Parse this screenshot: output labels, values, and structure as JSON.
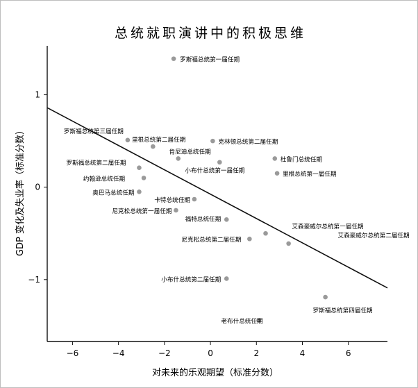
{
  "chart_data": {
    "type": "scatter",
    "title": "总统就职演讲中的积极思维",
    "xlabel": "对未来的乐观期望（标准分数）",
    "ylabel": "GDP 变化及失业率（标准分数）",
    "xlim": [
      -7.1,
      7.7
    ],
    "ylim": [
      -1.67,
      1.53
    ],
    "xticks": [
      -6,
      -4,
      -2,
      0,
      2,
      4,
      6
    ],
    "yticks": [
      -1,
      0,
      1
    ],
    "xtick_labels": [
      "−6",
      "−4",
      "−2",
      "0",
      "2",
      "4",
      "6"
    ],
    "ytick_labels": [
      "−1",
      "0",
      "1"
    ],
    "grid": false,
    "trend_line": {
      "x": [
        -7.1,
        7.7
      ],
      "y": [
        0.86,
        -1.09
      ]
    },
    "point_color": "#9a9a9a",
    "points": [
      {
        "label": "罗斯福总统第一届任期",
        "x": -1.6,
        "y": 1.39
      },
      {
        "label": "罗斯福总统第三届任期",
        "x": -3.6,
        "y": 0.51
      },
      {
        "label": "里根总统第二届任期",
        "x": -2.5,
        "y": 0.44
      },
      {
        "label": "肯尼迪总统任期",
        "x": -1.4,
        "y": 0.31
      },
      {
        "label": "克林顿总统第二届任期",
        "x": 0.1,
        "y": 0.5
      },
      {
        "label": "小布什总统第一届任期",
        "x": 0.4,
        "y": 0.27
      },
      {
        "label": "杜鲁门总统任期",
        "x": 2.8,
        "y": 0.31
      },
      {
        "label": "里根总统第一届任期",
        "x": 2.9,
        "y": 0.15
      },
      {
        "label": "罗斯福总统第二届任期",
        "x": -3.1,
        "y": 0.21
      },
      {
        "label": "约翰逊总统任期",
        "x": -2.9,
        "y": 0.1
      },
      {
        "label": "奥巴马总统任期",
        "x": -3.1,
        "y": -0.05
      },
      {
        "label": "卡特总统任期",
        "x": -0.7,
        "y": -0.13
      },
      {
        "label": "尼克松总统第一届任期",
        "x": -1.5,
        "y": -0.25
      },
      {
        "label": "福特总统任期",
        "x": 0.7,
        "y": -0.35
      },
      {
        "label": "艾森豪威尔总统第一届任期",
        "x": 2.4,
        "y": -0.5
      },
      {
        "label": "艾森豪威尔总统第二届任期",
        "x": 3.4,
        "y": -0.61
      },
      {
        "label": "尼克松总统第二届任期",
        "x": 1.7,
        "y": -0.56
      },
      {
        "label": "小布什总统第二届任期",
        "x": 0.7,
        "y": -0.99
      },
      {
        "label": "罗斯福总统第四届任期",
        "x": 5.0,
        "y": -1.19
      },
      {
        "label": "老布什总统任期",
        "x": 2.1,
        "y": -1.44
      }
    ]
  }
}
